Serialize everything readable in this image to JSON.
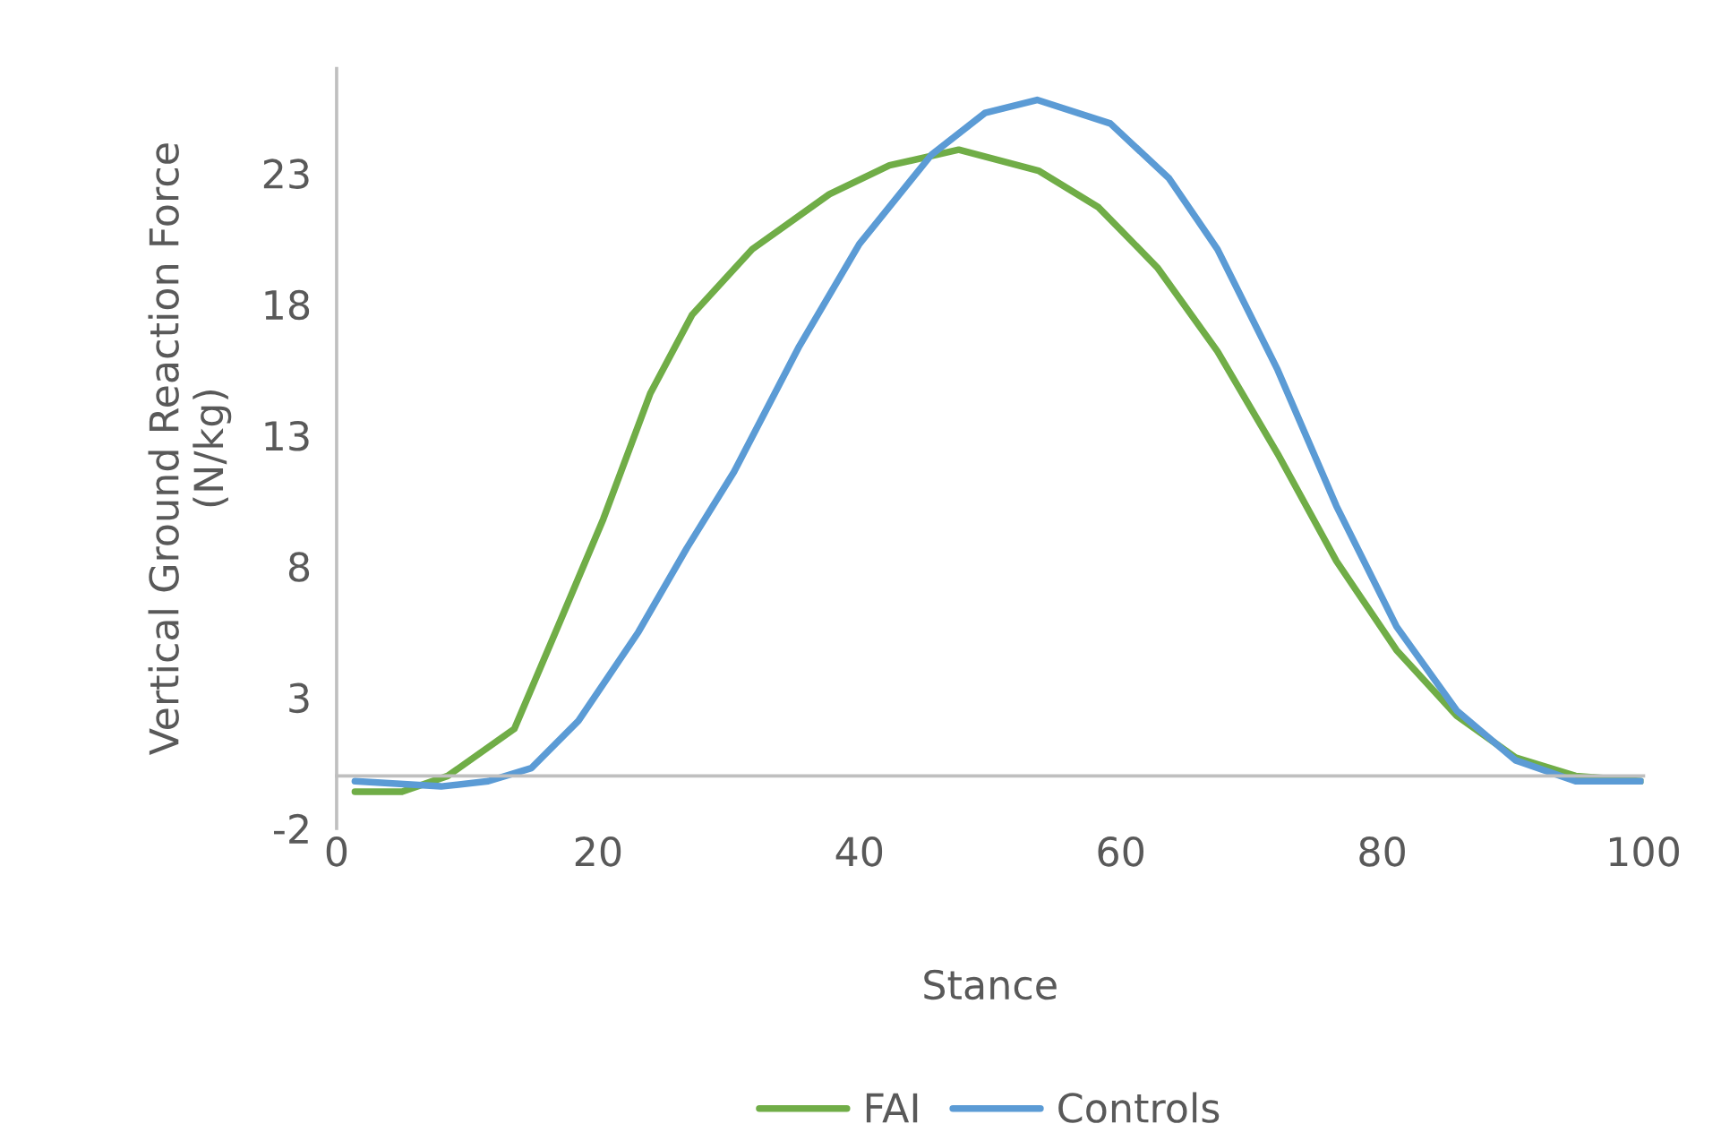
{
  "chart_data": {
    "type": "line",
    "xlabel": "Stance",
    "ylabel": "Vertical Ground Reaction Force\n(N/kg)",
    "xlim": [
      0,
      100
    ],
    "xticks": [
      0,
      20,
      40,
      60,
      80,
      100
    ],
    "ylim": [
      -2,
      27
    ],
    "yticks": [
      -2,
      3,
      8,
      13,
      18,
      23
    ],
    "grid": false,
    "legend": "bottom",
    "marker": "none",
    "line_style": "solid",
    "series": [
      {
        "name": "FAI",
        "color": "#70ad47",
        "x": [
          1.4,
          5,
          8.5,
          13.6,
          17.1,
          20.4,
          24.0,
          27.2,
          31.8,
          37.7,
          42.3,
          47.6,
          53.7,
          58.3,
          62.8,
          67.4,
          72.0,
          76.5,
          81.1,
          85.7,
          90.2,
          94.8,
          99.8
        ],
        "values": [
          -0.6,
          -0.6,
          0,
          1.8,
          5.9,
          9.8,
          14.6,
          17.6,
          20.1,
          22.2,
          23.3,
          23.9,
          23.1,
          21.7,
          19.4,
          16.2,
          12.3,
          8.2,
          4.8,
          2.3,
          0.7,
          0,
          -0.2
        ]
      },
      {
        "name": "Controls",
        "color": "#5b9bd5",
        "x": [
          1.4,
          8.0,
          11.6,
          14.9,
          18.5,
          23.1,
          26.8,
          30.4,
          35.4,
          40.0,
          45.5,
          49.6,
          53.6,
          59.2,
          63.7,
          67.4,
          72.0,
          76.5,
          81.1,
          85.7,
          90.2,
          94.8,
          99.8
        ],
        "values": [
          -0.2,
          -0.4,
          -0.2,
          0.3,
          2.1,
          5.5,
          8.7,
          11.6,
          16.4,
          20.3,
          23.7,
          25.3,
          25.8,
          24.9,
          22.8,
          20.1,
          15.5,
          10.3,
          5.7,
          2.5,
          0.6,
          -0.2,
          -0.2
        ]
      }
    ]
  }
}
